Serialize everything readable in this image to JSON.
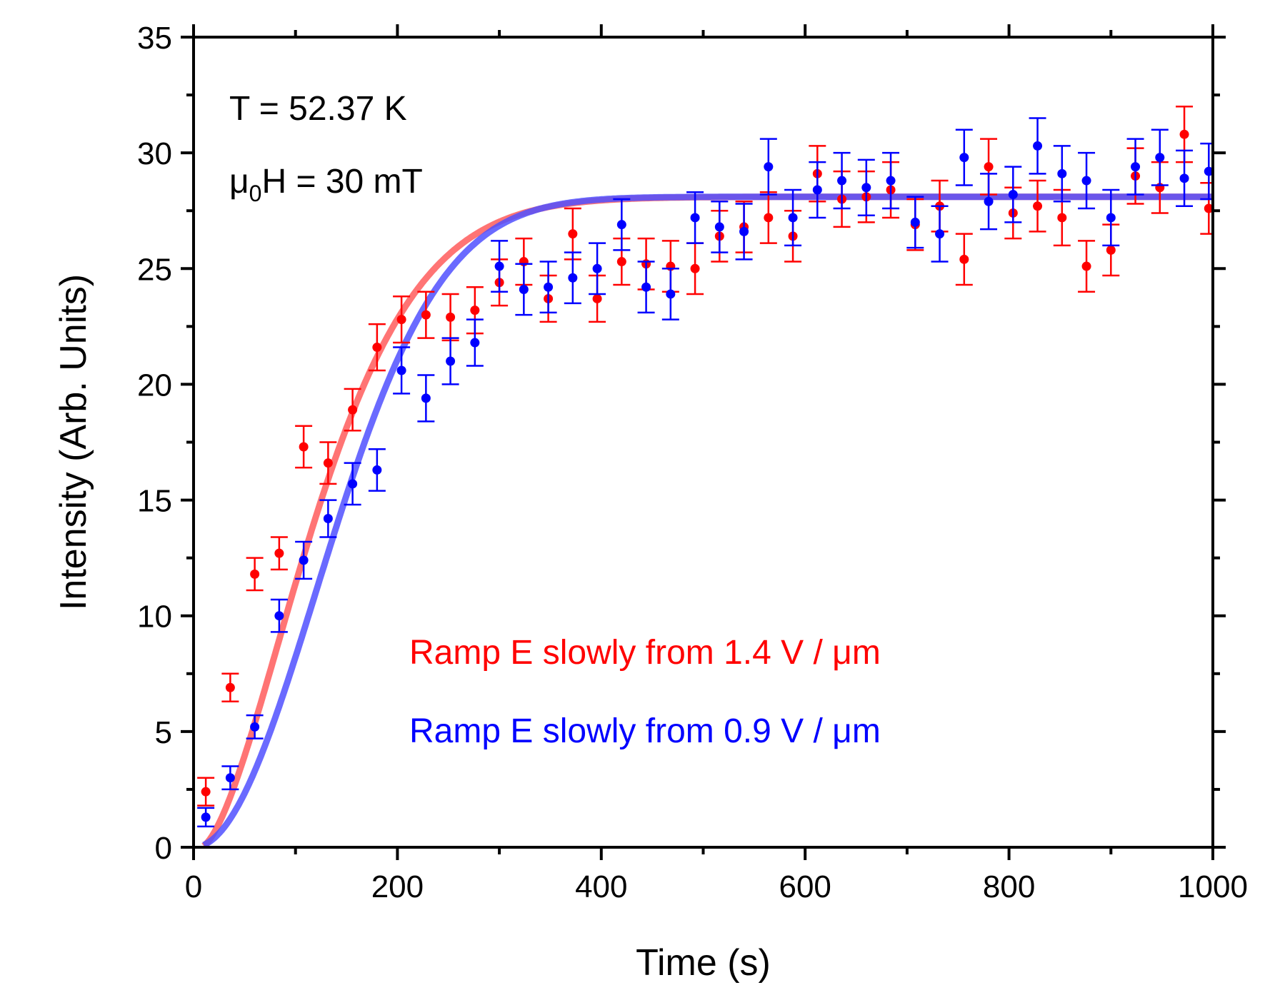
{
  "chart_data": {
    "type": "scatter",
    "title": "",
    "xlabel": "Time (s)",
    "ylabel": "Intensity (Arb. Units)",
    "xlim": [
      0,
      1000
    ],
    "ylim": [
      0,
      35
    ],
    "x_ticks": [
      0,
      200,
      400,
      600,
      800,
      1000
    ],
    "y_ticks": [
      0,
      5,
      10,
      15,
      20,
      25,
      30,
      35
    ],
    "x_tick_labels": [
      "0",
      "200",
      "400",
      "600",
      "800",
      "1000"
    ],
    "y_tick_labels": [
      "0",
      "5",
      "10",
      "15",
      "20",
      "25",
      "30",
      "35"
    ],
    "annotations": {
      "temperature": "T = 52.37 K",
      "field_prefix": "μ",
      "field_sub": "0",
      "field_suffix": "H = 30 mT"
    },
    "series": [
      {
        "name": "Ramp E slowly from 1.4 V / μm",
        "color": "#ff0000",
        "fit_color": "#ff5c5c",
        "x": [
          12,
          36,
          60,
          84,
          108,
          132,
          156,
          180,
          204,
          228,
          252,
          276,
          300,
          324,
          348,
          372,
          396,
          420,
          444,
          468,
          492,
          516,
          540,
          564,
          588,
          612,
          636,
          660,
          684,
          708,
          732,
          756,
          780,
          804,
          828,
          852,
          876,
          900,
          924,
          948,
          972,
          996
        ],
        "y": [
          2.4,
          6.9,
          11.8,
          12.7,
          17.3,
          16.6,
          18.9,
          21.6,
          22.8,
          23.0,
          22.9,
          23.2,
          24.4,
          25.3,
          23.7,
          26.5,
          23.7,
          25.3,
          25.2,
          25.1,
          25.0,
          26.4,
          26.8,
          27.2,
          26.4,
          29.1,
          28.0,
          28.1,
          28.4,
          26.9,
          27.7,
          25.4,
          29.4,
          27.4,
          27.7,
          27.2,
          25.1,
          25.8,
          29.0,
          28.5,
          30.8,
          27.6
        ],
        "yerr": [
          0.6,
          0.6,
          0.7,
          0.7,
          0.9,
          0.9,
          0.9,
          1.0,
          1.0,
          1.0,
          1.0,
          1.0,
          1.0,
          1.0,
          1.0,
          1.1,
          1.0,
          1.0,
          1.1,
          1.1,
          1.1,
          1.1,
          1.1,
          1.1,
          1.1,
          1.2,
          1.2,
          1.1,
          1.2,
          1.1,
          1.1,
          1.1,
          1.2,
          1.1,
          1.1,
          1.2,
          1.1,
          1.1,
          1.2,
          1.1,
          1.2,
          1.1
        ],
        "fit": {
          "amplitude": 28.1,
          "tau": 140,
          "power": 1.6,
          "t0": 7
        }
      },
      {
        "name": "Ramp E slowly from 0.9 V / μm",
        "color": "#0000ff",
        "fit_color": "#5050ff",
        "x": [
          12,
          36,
          60,
          84,
          108,
          132,
          156,
          180,
          204,
          228,
          252,
          276,
          300,
          324,
          348,
          372,
          396,
          420,
          444,
          468,
          492,
          516,
          540,
          564,
          588,
          612,
          636,
          660,
          684,
          708,
          732,
          756,
          780,
          804,
          828,
          852,
          876,
          900,
          924,
          948,
          972,
          996
        ],
        "y": [
          1.3,
          3.0,
          5.2,
          10.0,
          12.4,
          14.2,
          15.7,
          16.3,
          20.6,
          19.4,
          21.0,
          21.8,
          25.1,
          24.1,
          24.2,
          24.6,
          25.0,
          26.9,
          24.2,
          23.9,
          27.2,
          26.8,
          26.6,
          29.4,
          27.2,
          28.4,
          28.8,
          28.5,
          28.8,
          27.0,
          26.5,
          29.8,
          27.9,
          28.2,
          30.3,
          29.1,
          28.8,
          27.2,
          29.4,
          29.8,
          28.9,
          29.2
        ],
        "yerr": [
          0.4,
          0.5,
          0.5,
          0.7,
          0.8,
          0.8,
          0.9,
          0.9,
          1.0,
          1.0,
          1.0,
          1.0,
          1.1,
          1.1,
          1.1,
          1.1,
          1.1,
          1.1,
          1.1,
          1.1,
          1.1,
          1.1,
          1.2,
          1.2,
          1.2,
          1.2,
          1.2,
          1.2,
          1.2,
          1.1,
          1.2,
          1.2,
          1.2,
          1.2,
          1.2,
          1.2,
          1.2,
          1.2,
          1.2,
          1.2,
          1.2,
          1.2
        ],
        "fit": {
          "amplitude": 28.1,
          "tau": 170,
          "power": 2.0,
          "t0": 0
        }
      }
    ]
  }
}
